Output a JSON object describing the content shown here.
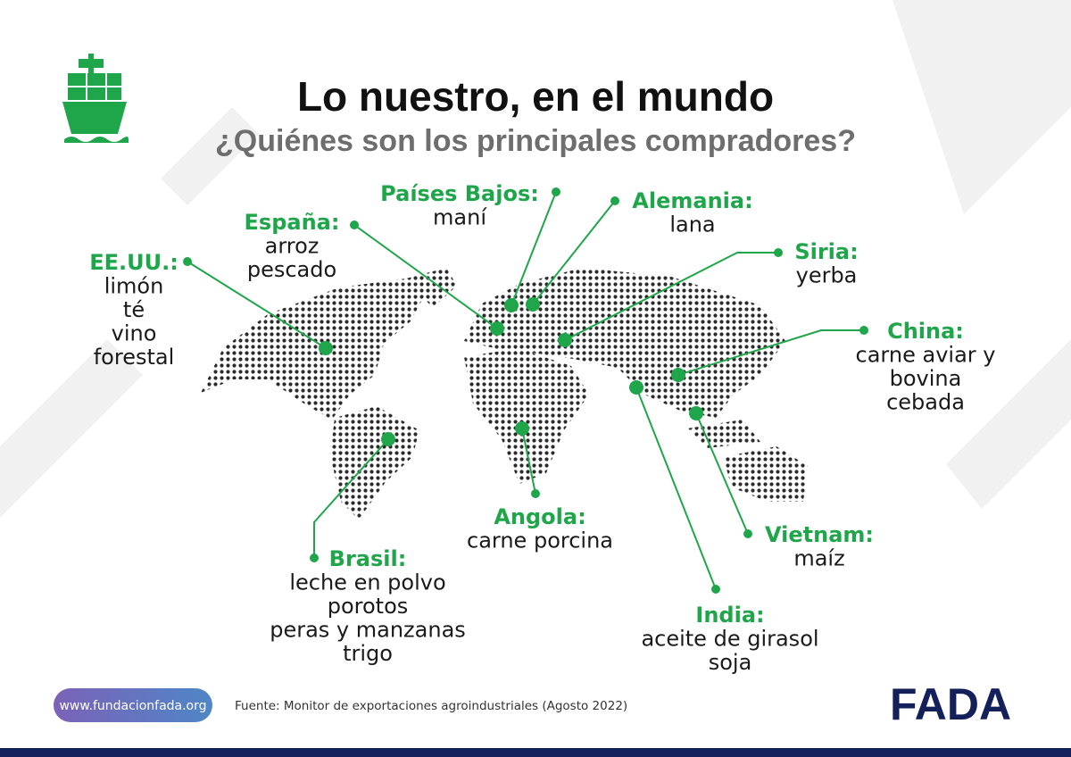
{
  "header": {
    "title": "Lo nuestro, en el mundo",
    "subtitle": "¿Quiénes son los principales compradores?"
  },
  "countries": [
    {
      "name": "EE.UU.:",
      "lines": [
        "limón",
        "té",
        "vino",
        "forestal"
      ]
    },
    {
      "name": "España:",
      "lines": [
        "arroz",
        "pescado"
      ]
    },
    {
      "name": "Países Bajos:",
      "lines": [
        "maní"
      ]
    },
    {
      "name": "Alemania:",
      "lines": [
        "lana"
      ]
    },
    {
      "name": "Siria:",
      "lines": [
        "yerba"
      ]
    },
    {
      "name": "China:",
      "lines": [
        "carne aviar y",
        "bovina",
        "cebada"
      ]
    },
    {
      "name": "Vietnam:",
      "lines": [
        "maíz"
      ]
    },
    {
      "name": "India:",
      "lines": [
        "aceite de girasol",
        "soja"
      ]
    },
    {
      "name": "Angola:",
      "lines": [
        "carne porcina"
      ]
    },
    {
      "name": "Brasil:",
      "lines": [
        "leche en polvo",
        "porotos",
        "peras y manzanas",
        "trigo"
      ]
    }
  ],
  "footer": {
    "url": "www.fundacionfada.org",
    "source": "Fuente: Monitor de exportaciones agroindustriales (Agosto 2022)",
    "logo": "FADA"
  }
}
